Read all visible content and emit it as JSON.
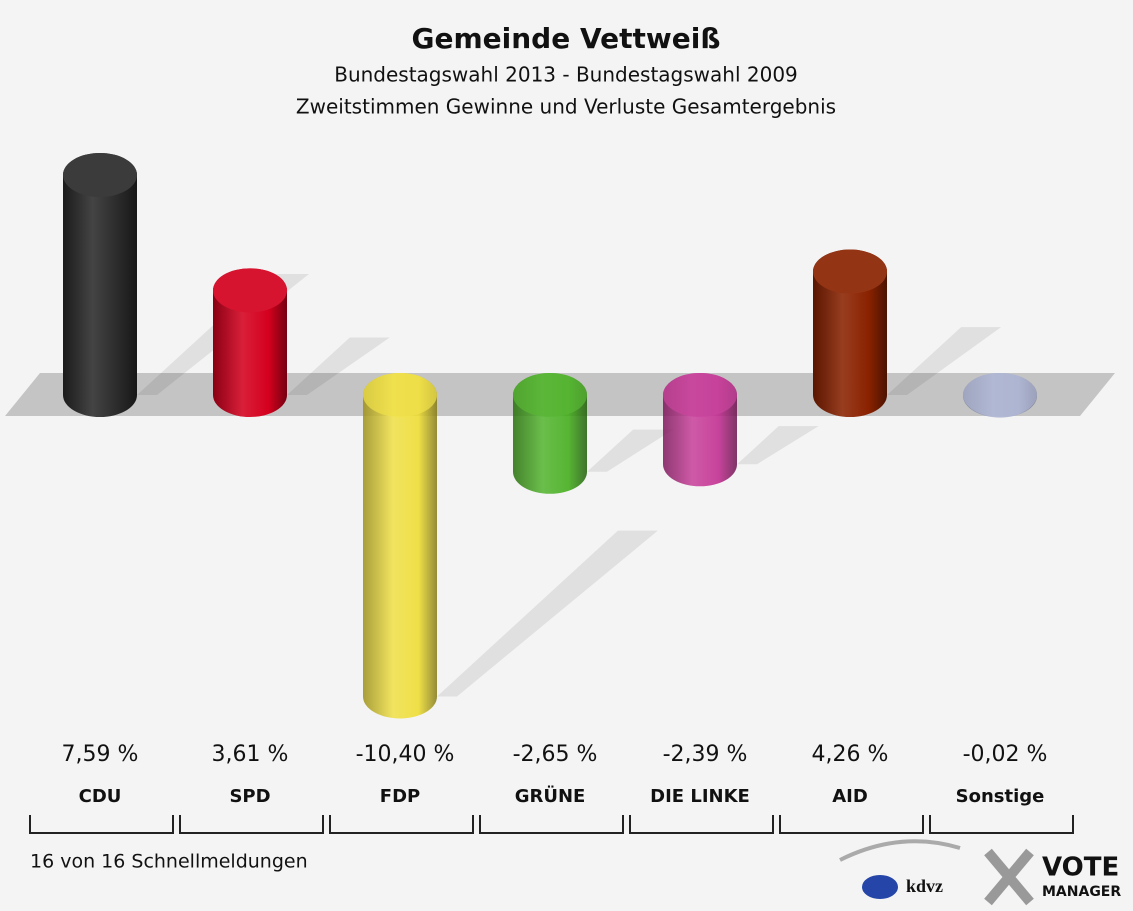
{
  "chart_data": {
    "type": "bar",
    "title": "Gemeinde Vettweiß",
    "subtitle": [
      "Bundestagswahl 2013 - Bundestagswahl 2009",
      "Zweitstimmen Gewinne und Verluste Gesamtergebnis"
    ],
    "categories": [
      "CDU",
      "SPD",
      "FDP",
      "GRÜNE",
      "DIE LINKE",
      "AID",
      "Sonstige"
    ],
    "values": [
      7.59,
      3.61,
      -10.4,
      -2.65,
      -2.39,
      4.26,
      -0.02
    ],
    "value_labels": [
      "7,59 %",
      "3,61 %",
      "-10,40 %",
      "-2,65 %",
      "-2,39 %",
      "4,26 %",
      "-0,02 %"
    ],
    "colors": [
      "#2a2a2a",
      "#d4001e",
      "#eedc2a",
      "#3aaa10",
      "#c0248c",
      "#8a2200",
      "#a3abcc"
    ],
    "footer": "16 von 16 Schnellmeldungen",
    "logo": {
      "kdvz": "kdvz",
      "vote": "VOTE",
      "manager": "MANAGER"
    }
  }
}
